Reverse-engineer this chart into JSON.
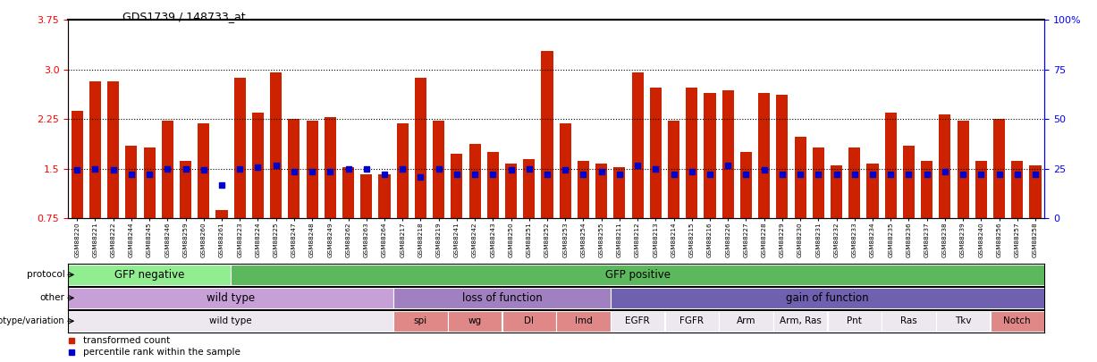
{
  "title": "GDS1739 / 148733_at",
  "samples": [
    "GSM88220",
    "GSM88221",
    "GSM88222",
    "GSM88244",
    "GSM88245",
    "GSM88246",
    "GSM88259",
    "GSM88260",
    "GSM88261",
    "GSM88223",
    "GSM88224",
    "GSM88225",
    "GSM88247",
    "GSM88248",
    "GSM88249",
    "GSM88262",
    "GSM88263",
    "GSM88264",
    "GSM88217",
    "GSM88218",
    "GSM88219",
    "GSM88241",
    "GSM88242",
    "GSM88243",
    "GSM88250",
    "GSM88251",
    "GSM88252",
    "GSM88253",
    "GSM88254",
    "GSM88255",
    "GSM88211",
    "GSM88212",
    "GSM88213",
    "GSM88214",
    "GSM88215",
    "GSM88216",
    "GSM88226",
    "GSM88227",
    "GSM88228",
    "GSM88229",
    "GSM88230",
    "GSM88231",
    "GSM88232",
    "GSM88233",
    "GSM88234",
    "GSM88235",
    "GSM88236",
    "GSM88237",
    "GSM88238",
    "GSM88239",
    "GSM88240",
    "GSM88256",
    "GSM88257",
    "GSM88258"
  ],
  "bar_values": [
    2.38,
    2.82,
    2.82,
    1.85,
    1.82,
    2.22,
    1.62,
    2.18,
    0.88,
    2.88,
    2.35,
    2.95,
    2.25,
    2.22,
    2.28,
    1.52,
    1.42,
    1.42,
    2.19,
    2.88,
    2.22,
    1.72,
    1.88,
    1.75,
    1.58,
    1.65,
    3.28,
    2.18,
    1.62,
    1.58,
    1.52,
    2.95,
    2.72,
    2.22,
    2.72,
    2.65,
    2.68,
    1.75,
    2.65,
    2.62,
    1.98,
    1.82,
    1.55,
    1.82,
    1.58,
    2.35,
    1.85,
    1.62,
    2.32,
    2.22,
    1.62,
    2.25,
    1.62,
    1.55
  ],
  "percentile_values": [
    1.48,
    1.5,
    1.48,
    1.42,
    1.42,
    1.5,
    1.5,
    1.48,
    1.25,
    1.5,
    1.52,
    1.55,
    1.45,
    1.45,
    1.45,
    1.5,
    1.5,
    1.42,
    1.5,
    1.38,
    1.5,
    1.42,
    1.42,
    1.42,
    1.48,
    1.5,
    1.42,
    1.48,
    1.42,
    1.45,
    1.42,
    1.55,
    1.5,
    1.42,
    1.45,
    1.42,
    1.55,
    1.42,
    1.48,
    1.42,
    1.42,
    1.42,
    1.42,
    1.42,
    1.42,
    1.42,
    1.42,
    1.42,
    1.45,
    1.42,
    1.42,
    1.42,
    1.42,
    1.42
  ],
  "ylim_left": [
    0.75,
    3.75
  ],
  "yticks_left": [
    0.75,
    1.5,
    2.25,
    3.0,
    3.75
  ],
  "yticks_right": [
    0,
    25,
    50,
    75,
    100
  ],
  "hlines": [
    1.5,
    2.25,
    3.0
  ],
  "bar_color": "#cc2200",
  "percentile_color": "#0000cc",
  "protocol_groups": [
    {
      "label": "GFP negative",
      "start": 0,
      "end": 8,
      "color": "#90ee90"
    },
    {
      "label": "GFP positive",
      "start": 9,
      "end": 53,
      "color": "#5cb85c"
    }
  ],
  "other_groups": [
    {
      "label": "wild type",
      "start": 0,
      "end": 17,
      "color": "#c8a0d8"
    },
    {
      "label": "loss of function",
      "start": 18,
      "end": 29,
      "color": "#a080c0"
    },
    {
      "label": "gain of function",
      "start": 30,
      "end": 53,
      "color": "#7060b0"
    }
  ],
  "genotype_groups": [
    {
      "label": "wild type",
      "start": 0,
      "end": 17,
      "color": "#ede8f0"
    },
    {
      "label": "spi",
      "start": 18,
      "end": 20,
      "color": "#e08888"
    },
    {
      "label": "wg",
      "start": 21,
      "end": 23,
      "color": "#e08888"
    },
    {
      "label": "Dl",
      "start": 24,
      "end": 26,
      "color": "#e08888"
    },
    {
      "label": "Imd",
      "start": 27,
      "end": 29,
      "color": "#e08888"
    },
    {
      "label": "EGFR",
      "start": 30,
      "end": 32,
      "color": "#ede8f0"
    },
    {
      "label": "FGFR",
      "start": 33,
      "end": 35,
      "color": "#ede8f0"
    },
    {
      "label": "Arm",
      "start": 36,
      "end": 38,
      "color": "#ede8f0"
    },
    {
      "label": "Arm, Ras",
      "start": 39,
      "end": 41,
      "color": "#ede8f0"
    },
    {
      "label": "Pnt",
      "start": 42,
      "end": 44,
      "color": "#ede8f0"
    },
    {
      "label": "Ras",
      "start": 45,
      "end": 47,
      "color": "#ede8f0"
    },
    {
      "label": "Tkv",
      "start": 48,
      "end": 50,
      "color": "#ede8f0"
    },
    {
      "label": "Notch",
      "start": 51,
      "end": 53,
      "color": "#e08888"
    }
  ],
  "row_labels": [
    "protocol",
    "other",
    "genotype/variation"
  ],
  "legend_items": [
    {
      "label": "transformed count",
      "color": "#cc2200"
    },
    {
      "label": "percentile rank within the sample",
      "color": "#0000cc"
    }
  ]
}
